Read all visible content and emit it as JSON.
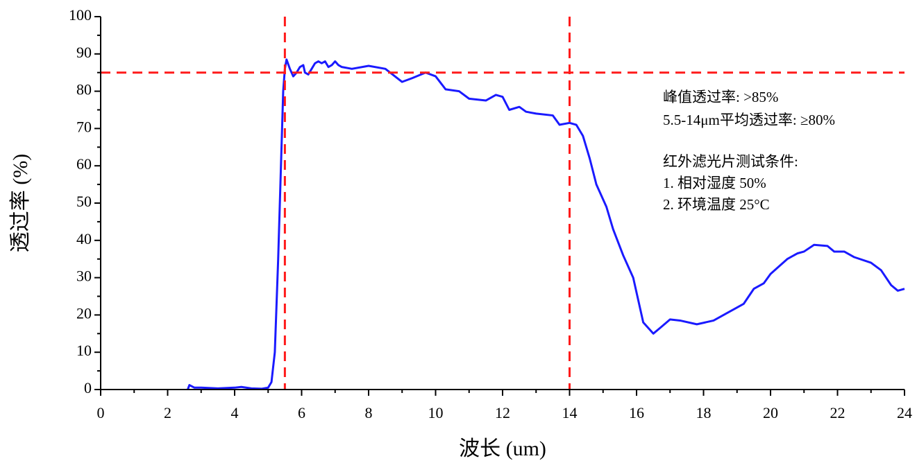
{
  "chart_data": {
    "type": "line",
    "xlabel": "波长 (um)",
    "ylabel": "透过率 (%)",
    "xlim": [
      0,
      24
    ],
    "ylim": [
      0,
      100
    ],
    "xticks": [
      0,
      2,
      4,
      6,
      8,
      10,
      12,
      14,
      16,
      18,
      20,
      22,
      24
    ],
    "yticks": [
      0,
      10,
      20,
      30,
      40,
      50,
      60,
      70,
      80,
      90,
      100
    ],
    "vlines": [
      5.5,
      14
    ],
    "hlines": [
      85
    ],
    "ref_color": "#ff1a1a",
    "annotations": [
      "峰值透过率: >85%",
      "5.5-14μm平均透过率: ≥80%",
      "红外滤光片测试条件:",
      "1. 相对湿度 50%",
      "2. 环境温度 25°C"
    ],
    "annotation_color": "#ff1a1a",
    "series": [
      {
        "color": "#1a1aff",
        "x": [
          2.6,
          2.65,
          2.8,
          3.0,
          3.5,
          4.0,
          4.2,
          4.5,
          4.8,
          5.0,
          5.1,
          5.2,
          5.3,
          5.4,
          5.45,
          5.5,
          5.55,
          5.65,
          5.75,
          5.85,
          5.95,
          6.05,
          6.1,
          6.2,
          6.3,
          6.4,
          6.5,
          6.6,
          6.7,
          6.8,
          6.9,
          7.0,
          7.1,
          7.2,
          7.5,
          8.0,
          8.5,
          9.0,
          9.3,
          9.7,
          10.0,
          10.3,
          10.7,
          11.0,
          11.5,
          11.8,
          12.0,
          12.2,
          12.5,
          12.7,
          13.0,
          13.5,
          13.7,
          14.0,
          14.2,
          14.4,
          14.6,
          14.8,
          15.1,
          15.3,
          15.6,
          15.9,
          16.2,
          16.5,
          16.7,
          17.0,
          17.3,
          17.8,
          18.3,
          18.7,
          19.0,
          19.2,
          19.5,
          19.8,
          20.0,
          20.5,
          20.8,
          21.0,
          21.3,
          21.7,
          21.9,
          22.2,
          22.5,
          23.0,
          23.3,
          23.6,
          23.8,
          24.0
        ],
        "values": [
          0,
          1.2,
          0.5,
          0.5,
          0.3,
          0.5,
          0.7,
          0.3,
          0.2,
          0.5,
          2,
          10,
          35,
          65,
          80,
          86,
          88.5,
          86,
          84,
          85,
          86.5,
          87,
          85,
          84.5,
          86,
          87.5,
          88,
          87.5,
          88,
          86.5,
          87,
          88,
          87,
          86.5,
          86,
          86.8,
          86,
          82.5,
          83.5,
          85,
          84,
          80.5,
          80,
          78,
          77.5,
          79,
          78.5,
          75,
          75.8,
          74.5,
          74,
          73.5,
          71,
          71.5,
          71,
          68,
          62,
          55,
          49,
          43,
          36,
          30,
          18,
          15,
          16.5,
          18.8,
          18.5,
          17.5,
          18.5,
          20.5,
          22,
          23,
          27,
          28.5,
          31,
          35,
          36.5,
          37,
          38.8,
          38.5,
          37,
          37,
          35.5,
          34,
          32,
          28,
          26.5,
          27
        ]
      }
    ]
  }
}
